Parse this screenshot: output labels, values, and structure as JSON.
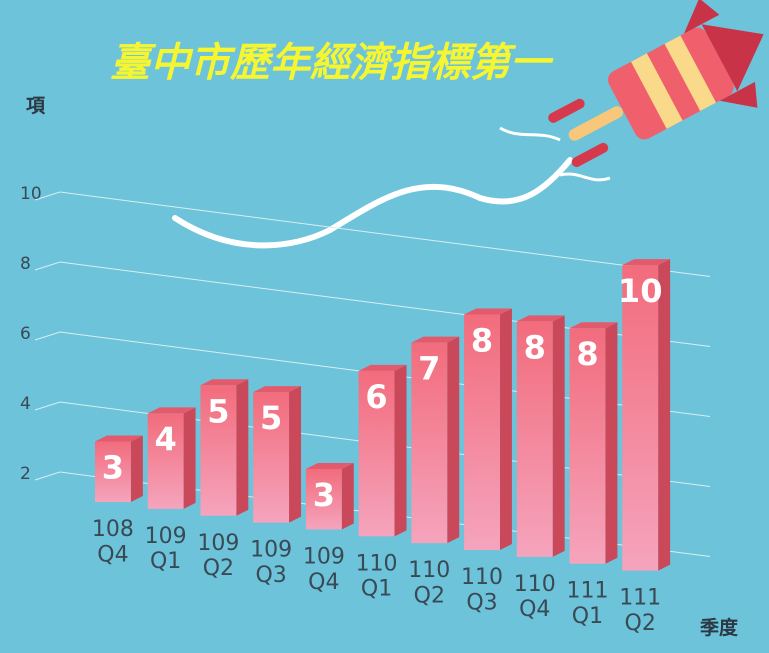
{
  "chart_data": {
    "type": "bar3d",
    "title": "臺中市歷年經濟指標第一",
    "y_label": "項",
    "x_label": "季度",
    "categories": [
      "108\nQ4",
      "109\nQ1",
      "109\nQ2",
      "109\nQ3",
      "109\nQ4",
      "110\nQ1",
      "110\nQ2",
      "110\nQ3",
      "110\nQ4",
      "111\nQ1",
      "111\nQ2"
    ],
    "values": [
      3,
      4,
      5,
      5,
      3,
      6,
      7,
      8,
      8,
      8,
      10
    ],
    "color": "#f27585",
    "ylim": [
      1.5,
      10.5
    ],
    "yticks": [
      2,
      4,
      6,
      8,
      10
    ],
    "grid": true
  }
}
